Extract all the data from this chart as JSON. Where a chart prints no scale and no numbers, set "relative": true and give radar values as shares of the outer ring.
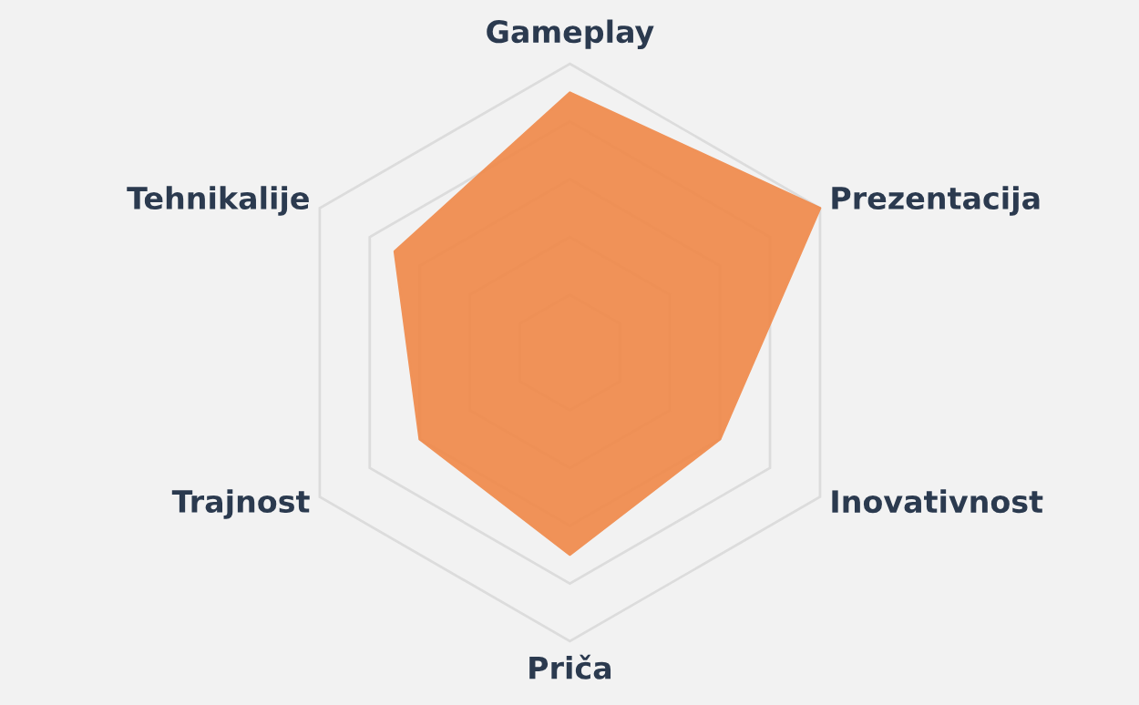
{
  "chart_data": {
    "type": "radar",
    "relative": true,
    "grid": true,
    "categories": [
      "Gameplay",
      "Prezentacija",
      "Inovativnost",
      "Priča",
      "Trajnost",
      "Tehnikalije"
    ],
    "series": [
      {
        "color": "#f08a4b",
        "values": [
          0.9,
          1,
          0.6,
          0.7,
          0.6,
          0.7
        ]
      }
    ]
  }
}
